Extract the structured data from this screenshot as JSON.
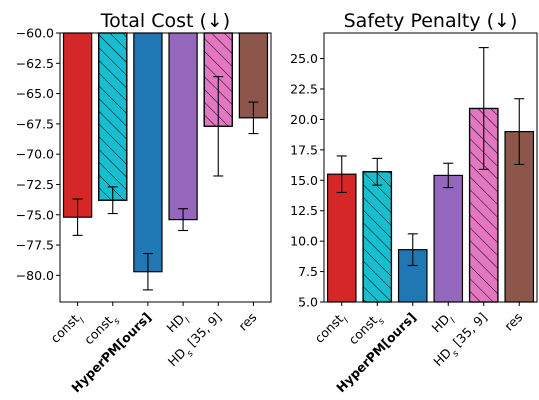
{
  "chart_data": [
    {
      "type": "bar",
      "title": "Total Cost (↓)",
      "categories": [
        {
          "base": "const",
          "sub": "l"
        },
        {
          "base": "const",
          "sub": "s"
        },
        {
          "base": "HyperPM[ours]",
          "sub": "",
          "bold": true
        },
        {
          "base": "HD",
          "sub": "l"
        },
        {
          "base": "HD",
          "sub": "s",
          "tail": " [35, 9]"
        },
        {
          "base": "res",
          "sub": ""
        }
      ],
      "values": [
        -75.2,
        -73.8,
        -79.7,
        -75.4,
        -67.7,
        -67.0
      ],
      "errors": [
        1.5,
        1.1,
        1.5,
        0.9,
        4.1,
        1.3
      ],
      "bar_base": -60.0,
      "colors": [
        "#d62728",
        "#17becf",
        "#1f77b4",
        "#9467bd",
        "#e377c2",
        "#8c564b"
      ],
      "hatched": [
        false,
        true,
        false,
        false,
        true,
        false
      ],
      "ylim": [
        -82.2,
        -60.0
      ],
      "yticks": [
        -60.0,
        -62.5,
        -65.0,
        -67.5,
        -70.0,
        -72.5,
        -75.0,
        -77.5,
        -80.0
      ],
      "ytick_labels": [
        "−60.0",
        "−62.5",
        "−65.0",
        "−67.5",
        "−70.0",
        "−72.5",
        "−75.0",
        "−77.5",
        "−80.0"
      ]
    },
    {
      "type": "bar",
      "title": "Safety Penalty (↓)",
      "categories": [
        {
          "base": "const",
          "sub": "l"
        },
        {
          "base": "const",
          "sub": "s"
        },
        {
          "base": "HyperPM[ours]",
          "sub": "",
          "bold": true
        },
        {
          "base": "HD",
          "sub": "l"
        },
        {
          "base": "HD",
          "sub": "s",
          "tail": " [35, 9]"
        },
        {
          "base": "res",
          "sub": ""
        }
      ],
      "values": [
        15.5,
        15.7,
        9.3,
        15.4,
        20.9,
        19.0
      ],
      "errors": [
        1.5,
        1.1,
        1.3,
        1.0,
        5.0,
        2.7
      ],
      "bar_base": 5.0,
      "colors": [
        "#d62728",
        "#17becf",
        "#1f77b4",
        "#9467bd",
        "#e377c2",
        "#8c564b"
      ],
      "hatched": [
        false,
        true,
        false,
        false,
        true,
        false
      ],
      "ylim": [
        5.0,
        27.1
      ],
      "yticks": [
        5.0,
        7.5,
        10.0,
        12.5,
        15.0,
        17.5,
        20.0,
        22.5,
        25.0
      ],
      "ytick_labels": [
        "5.0",
        "7.5",
        "10.0",
        "12.5",
        "15.0",
        "17.5",
        "20.0",
        "22.5",
        "25.0"
      ]
    }
  ]
}
